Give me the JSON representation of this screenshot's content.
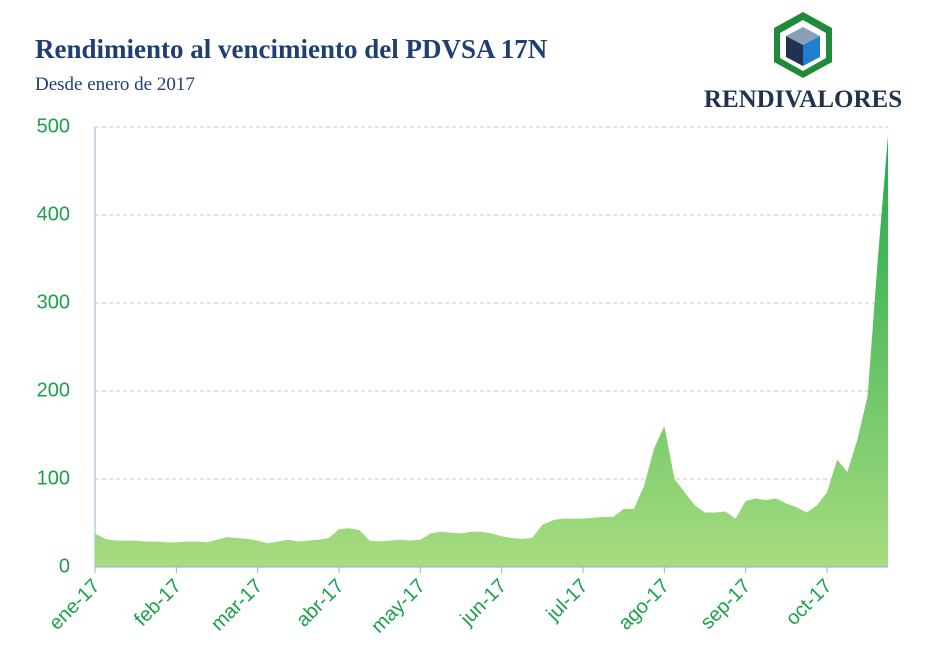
{
  "chart_data": {
    "type": "area",
    "title": "Rendimiento al vencimiento del PDVSA 17N",
    "subtitle": "Desde enero de 2017",
    "logo_text": "RENDIVALORES",
    "categories": [
      "ene-17",
      null,
      null,
      null,
      null,
      null,
      null,
      null,
      "feb-17",
      null,
      null,
      null,
      null,
      null,
      null,
      null,
      "mar-17",
      null,
      null,
      null,
      null,
      null,
      null,
      null,
      "abr-17",
      null,
      null,
      null,
      null,
      null,
      null,
      null,
      "may-17",
      null,
      null,
      null,
      null,
      null,
      null,
      null,
      "jun-17",
      null,
      null,
      null,
      null,
      null,
      null,
      null,
      "jul-17",
      null,
      null,
      null,
      null,
      null,
      null,
      null,
      "ago-17",
      null,
      null,
      null,
      null,
      null,
      null,
      null,
      "sep-17",
      null,
      null,
      null,
      null,
      null,
      null,
      null,
      "oct-17",
      null,
      null,
      null,
      null,
      null,
      null
    ],
    "values": [
      38,
      32,
      30,
      30,
      30,
      29,
      29,
      28,
      28,
      29,
      29,
      28,
      31,
      34,
      33,
      32,
      30,
      27,
      29,
      31,
      29,
      30,
      31,
      33,
      43,
      44,
      42,
      30,
      29,
      30,
      31,
      30,
      31,
      38,
      40,
      39,
      38,
      40,
      40,
      38,
      35,
      33,
      32,
      33,
      48,
      53,
      55,
      55,
      55,
      56,
      57,
      57,
      66,
      66,
      92,
      135,
      160,
      100,
      85,
      70,
      62,
      62,
      63,
      55,
      75,
      78,
      76,
      78,
      72,
      68,
      62,
      70,
      85,
      122,
      108,
      145,
      195,
      350,
      490
    ],
    "color_top": "#1fa94a",
    "color_bottom": "#a8dc80",
    "ylim": [
      0,
      500
    ],
    "yticks": [
      0,
      100,
      200,
      300,
      400,
      500
    ],
    "grid": true
  }
}
